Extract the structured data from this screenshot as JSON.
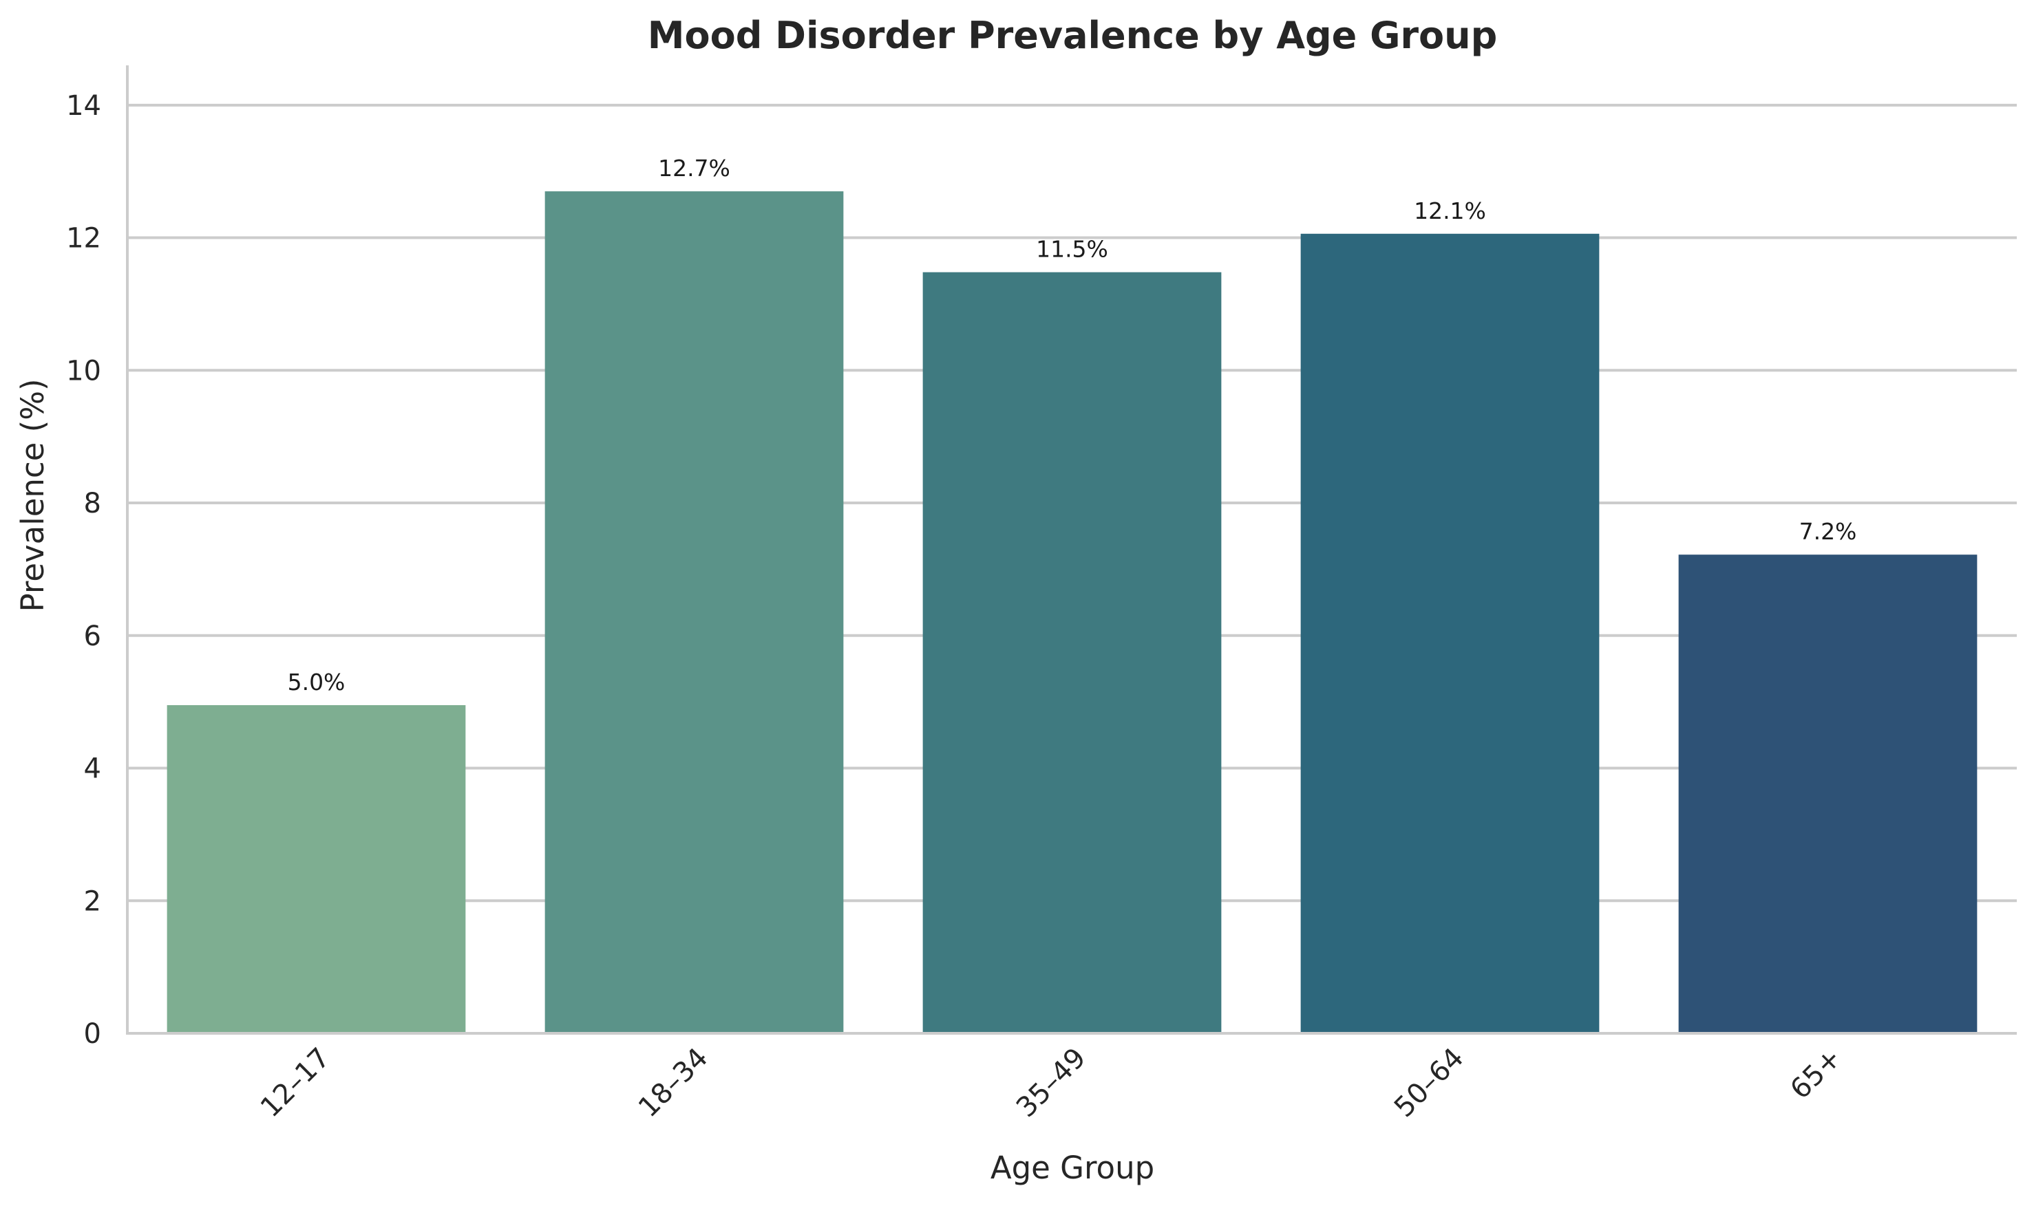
{
  "chart_data": {
    "type": "bar",
    "title": "Mood Disorder Prevalence by Age Group",
    "xlabel": "Age Group",
    "ylabel": "Prevalence (%)",
    "categories": [
      "12–17",
      "18–34",
      "35–49",
      "50–64",
      "65+"
    ],
    "values": [
      4.95,
      12.7,
      11.48,
      12.06,
      7.22
    ],
    "value_labels": [
      "5.0%",
      "12.7%",
      "11.5%",
      "12.1%",
      "7.2%"
    ],
    "colors": [
      "#7eae91",
      "#5b9389",
      "#3f7a80",
      "#2d677c",
      "#2e5276"
    ],
    "ylim": [
      0,
      14.6
    ],
    "yticks": [
      0,
      2,
      4,
      6,
      8,
      10,
      12,
      14
    ],
    "grid": "horizontal",
    "legend": "none"
  }
}
